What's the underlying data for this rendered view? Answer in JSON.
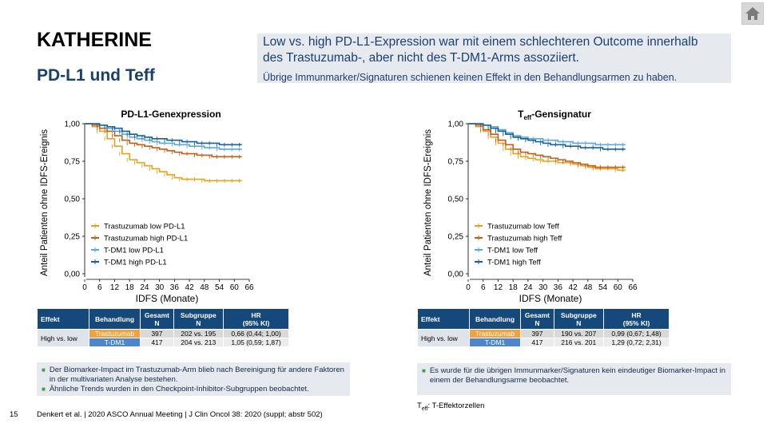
{
  "header": {
    "title": "KATHERINE",
    "subtitle": "PD-L1 und Teff"
  },
  "info_box": {
    "line1": "Low vs. high PD-L1-Expression war mit einem schlechteren Outcome innerhalb",
    "line2": "des Trastuzumab-, aber nicht des T-DM1-Arms assoziiert.",
    "line3": "Übrige Immunmarker/Signaturen schienen keinen Effekt in den Behandlungsarmen zu haben."
  },
  "colors": {
    "trastuzumab_low": "#e8a219",
    "trastuzumab_high": "#c65d17",
    "tdm1_low": "#5aa9dc",
    "tdm1_high": "#1a5f96",
    "title_blue": "#17406d",
    "table_header": "#15497c"
  },
  "chart_data": [
    {
      "type": "line",
      "title": "PD-L1-Genexpression",
      "xlabel": "IDFS (Monate)",
      "ylabel": "Anteil Patienten ohne IDFS-Ereignis",
      "x_ticks": [
        "0",
        "6",
        "12",
        "18",
        "24",
        "30",
        "36",
        "42",
        "48",
        "54",
        "60",
        "66"
      ],
      "y_ticks": [
        "0,00",
        "0,25",
        "0,50",
        "0,75",
        "1,00"
      ],
      "xlim": [
        0,
        66
      ],
      "ylim": [
        0,
        1
      ],
      "legend_position": "bottom-left",
      "series": [
        {
          "name": "Trastuzumab low PD-L1",
          "color": "#e8a219",
          "x": [
            0,
            3,
            6,
            9,
            12,
            15,
            18,
            21,
            24,
            27,
            30,
            33,
            36,
            39,
            42,
            45,
            48,
            51,
            54,
            57,
            60,
            63
          ],
          "y": [
            1.0,
            0.98,
            0.95,
            0.9,
            0.85,
            0.8,
            0.76,
            0.74,
            0.72,
            0.7,
            0.68,
            0.66,
            0.64,
            0.63,
            0.63,
            0.63,
            0.62,
            0.62,
            0.62,
            0.62,
            0.62,
            0.62
          ]
        },
        {
          "name": "Trastuzumab high PD-L1",
          "color": "#c65d17",
          "x": [
            0,
            3,
            6,
            9,
            12,
            15,
            18,
            21,
            24,
            27,
            30,
            33,
            36,
            39,
            42,
            45,
            48,
            51,
            54,
            57,
            60,
            63
          ],
          "y": [
            1.0,
            0.99,
            0.97,
            0.95,
            0.92,
            0.89,
            0.87,
            0.86,
            0.85,
            0.84,
            0.83,
            0.82,
            0.81,
            0.8,
            0.8,
            0.79,
            0.79,
            0.78,
            0.78,
            0.78,
            0.78,
            0.78
          ]
        },
        {
          "name": "T-DM1 low PD-L1",
          "color": "#5aa9dc",
          "x": [
            0,
            3,
            6,
            9,
            12,
            15,
            18,
            21,
            24,
            27,
            30,
            33,
            36,
            39,
            42,
            45,
            48,
            51,
            54,
            57,
            60,
            63
          ],
          "y": [
            1.0,
            1.0,
            0.99,
            0.97,
            0.95,
            0.93,
            0.91,
            0.9,
            0.89,
            0.88,
            0.87,
            0.87,
            0.86,
            0.86,
            0.85,
            0.85,
            0.84,
            0.84,
            0.83,
            0.83,
            0.83,
            0.83
          ]
        },
        {
          "name": "T-DM1 high PD-L1",
          "color": "#1a5f96",
          "x": [
            0,
            3,
            6,
            9,
            12,
            15,
            18,
            21,
            24,
            27,
            30,
            33,
            36,
            39,
            42,
            45,
            48,
            51,
            54,
            57,
            60,
            63
          ],
          "y": [
            1.0,
            1.0,
            0.99,
            0.98,
            0.97,
            0.95,
            0.93,
            0.92,
            0.91,
            0.9,
            0.9,
            0.89,
            0.89,
            0.88,
            0.88,
            0.87,
            0.87,
            0.87,
            0.86,
            0.86,
            0.86,
            0.86
          ]
        }
      ]
    },
    {
      "type": "line",
      "title": "Teff-Gensignatur",
      "title_main": "T",
      "title_sub": "eff",
      "title_rest": "-Gensignatur",
      "xlabel": "IDFS (Monate)",
      "ylabel": "Anteil Patienten ohne IDFS-Ereignis",
      "x_ticks": [
        "0",
        "6",
        "12",
        "18",
        "24",
        "30",
        "36",
        "42",
        "48",
        "54",
        "60",
        "66"
      ],
      "y_ticks": [
        "0,00",
        "0,25",
        "0,50",
        "0,75",
        "1,00"
      ],
      "xlim": [
        0,
        66
      ],
      "ylim": [
        0,
        1
      ],
      "legend_position": "bottom-left",
      "series": [
        {
          "name": "Trastuzumab low Teff",
          "color": "#e8a219",
          "x": [
            0,
            3,
            6,
            9,
            12,
            15,
            18,
            21,
            24,
            27,
            30,
            33,
            36,
            39,
            42,
            45,
            48,
            51,
            54,
            57,
            60,
            63
          ],
          "y": [
            1.0,
            0.98,
            0.95,
            0.91,
            0.87,
            0.83,
            0.8,
            0.78,
            0.77,
            0.76,
            0.75,
            0.75,
            0.74,
            0.74,
            0.73,
            0.72,
            0.71,
            0.7,
            0.7,
            0.7,
            0.69,
            0.69
          ]
        },
        {
          "name": "Trastuzumab high Teff",
          "color": "#c65d17",
          "x": [
            0,
            3,
            6,
            9,
            12,
            15,
            18,
            21,
            24,
            27,
            30,
            33,
            36,
            39,
            42,
            45,
            48,
            51,
            54,
            57,
            60,
            63
          ],
          "y": [
            1.0,
            0.99,
            0.96,
            0.93,
            0.89,
            0.86,
            0.83,
            0.81,
            0.8,
            0.79,
            0.78,
            0.77,
            0.76,
            0.75,
            0.74,
            0.73,
            0.72,
            0.71,
            0.71,
            0.71,
            0.71,
            0.71
          ]
        },
        {
          "name": "T-DM1 low Teff",
          "color": "#5aa9dc",
          "x": [
            0,
            3,
            6,
            9,
            12,
            15,
            18,
            21,
            24,
            27,
            30,
            33,
            36,
            39,
            42,
            45,
            48,
            51,
            54,
            57,
            60,
            63
          ],
          "y": [
            1.0,
            1.0,
            0.99,
            0.98,
            0.96,
            0.94,
            0.92,
            0.91,
            0.9,
            0.9,
            0.89,
            0.89,
            0.88,
            0.88,
            0.87,
            0.87,
            0.87,
            0.86,
            0.86,
            0.86,
            0.86,
            0.86
          ]
        },
        {
          "name": "T-DM1 high Teff",
          "color": "#1a5f96",
          "x": [
            0,
            3,
            6,
            9,
            12,
            15,
            18,
            21,
            24,
            27,
            30,
            33,
            36,
            39,
            42,
            45,
            48,
            51,
            54,
            57,
            60,
            63
          ],
          "y": [
            1.0,
            1.0,
            0.99,
            0.97,
            0.95,
            0.93,
            0.91,
            0.9,
            0.89,
            0.88,
            0.87,
            0.86,
            0.86,
            0.85,
            0.85,
            0.84,
            0.84,
            0.84,
            0.83,
            0.83,
            0.83,
            0.83
          ]
        }
      ]
    }
  ],
  "tables": [
    {
      "headers": {
        "effekt": "Effekt",
        "behandlung": "Behandlung",
        "gesamt": "Gesamt",
        "gesamt_sub": "N",
        "subgruppe": "Subgruppe",
        "subgruppe_sub": "N",
        "hr": "HR",
        "hr_sub": "(95% KI)"
      },
      "effekt_value": "High vs. low",
      "rows": [
        {
          "treatment": "Trastuzumab",
          "n": "397",
          "sub": "202 vs. 195",
          "hr": "0,66 (0,44; 1,00)"
        },
        {
          "treatment": "T-DM1",
          "n": "417",
          "sub": "204 vs. 213",
          "hr": "1,05 (0,59; 1,87)"
        }
      ]
    },
    {
      "headers": {
        "effekt": "Effekt",
        "behandlung": "Behandlung",
        "gesamt": "Gesamt",
        "gesamt_sub": "N",
        "subgruppe": "Subgruppe",
        "subgruppe_sub": "N",
        "hr": "HR",
        "hr_sub": "(95% KI)"
      },
      "effekt_value": "High vs. low",
      "rows": [
        {
          "treatment": "Trastuzumab",
          "n": "397",
          "sub": "190 vs. 207",
          "hr": "0,99 (0,67; 1,48)"
        },
        {
          "treatment": "T-DM1",
          "n": "417",
          "sub": "216 vs. 201",
          "hr": "1,29 (0,72; 2,31)"
        }
      ]
    }
  ],
  "notes_left": [
    "Der Biomarker-Impact im Trastuzumab-Arm blieb nach Bereinigung für andere Faktoren in der multivariaten Analyse bestehen.",
    "Ähnliche Trends wurden in den Checkpoint-Inhibitor-Subgruppen beobachtet."
  ],
  "notes_right": [
    "Es wurde für die übrigen Immunmarker/Signaturen kein eindeutiger Biomarker-Impact in einem der Behandlungsarme beobachtet."
  ],
  "footnote": {
    "main": "T",
    "sub": "eff",
    "rest": ": T-Effektorzellen"
  },
  "footer": {
    "page_number": "15",
    "citation": "Denkert et al. | 2020 ASCO Annual Meeting | J Clin Oncol 38: 2020 (suppl; abstr 502)"
  },
  "icons": {
    "home": "home-icon"
  }
}
